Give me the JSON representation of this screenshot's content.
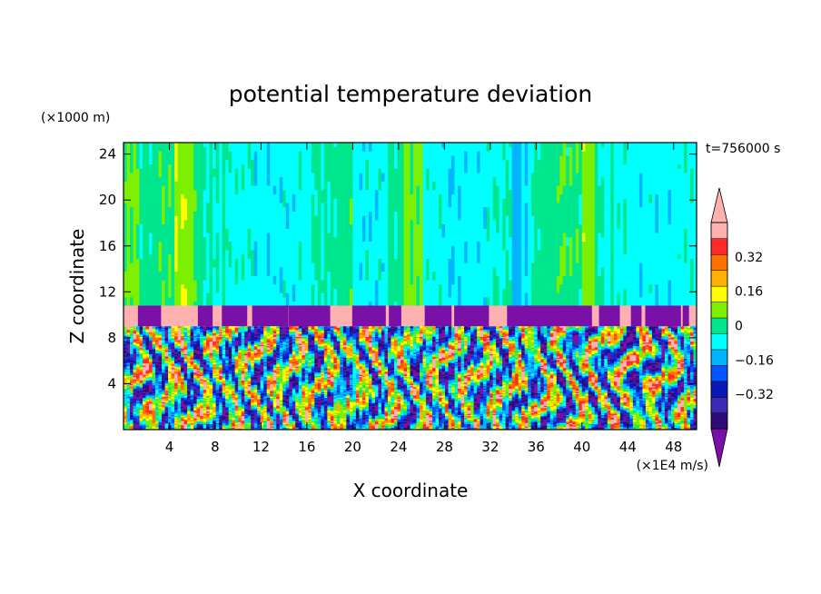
{
  "chart_data": {
    "type": "heatmap",
    "title": "potential temperature deviation",
    "xlabel": "X coordinate",
    "ylabel": "Z coordinate",
    "x_unit": "(×1E4 m/s)",
    "y_unit": "(×1000 m)",
    "time_label": "t=756000 s",
    "xlim": [
      0,
      50
    ],
    "ylim": [
      0,
      25
    ],
    "x_ticks": [
      "4",
      "8",
      "12",
      "16",
      "20",
      "24",
      "28",
      "32",
      "36",
      "40",
      "44",
      "48"
    ],
    "y_ticks": [
      "4",
      "8",
      "12",
      "16",
      "20",
      "24"
    ],
    "colorbar": {
      "levels": [
        -0.48,
        -0.4,
        -0.32,
        -0.24,
        -0.16,
        -0.08,
        0,
        0.08,
        0.16,
        0.24,
        0.32,
        0.4,
        0.48
      ],
      "colors": [
        "#2e0a7a",
        "#3b2ab4",
        "#0a18b8",
        "#0055ff",
        "#00b4ff",
        "#00ffff",
        "#00e68c",
        "#7cf000",
        "#ffff00",
        "#ffb000",
        "#ff7000",
        "#ff2a2a",
        "#ffb0b0"
      ],
      "under_color": "#7a10a8",
      "over_color": "#ffb0b0",
      "tick_labels": [
        "0.32",
        "0.16",
        "0",
        "-0.16",
        "-0.32"
      ],
      "tick_values": [
        0.32,
        0.16,
        0,
        -0.16,
        -0.32
      ]
    }
  }
}
